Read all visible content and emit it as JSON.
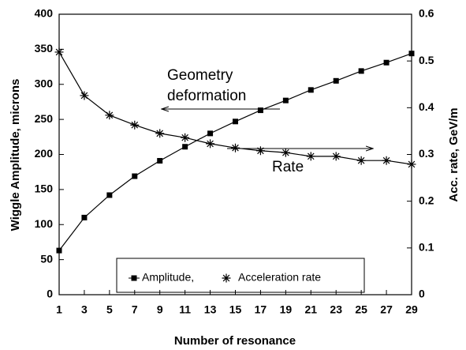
{
  "chart_data": {
    "type": "line",
    "x_label": "Number of resonance",
    "y_label": "Wiggle Amplitude, microns",
    "y2_label": "Acc. rate, GeV/m",
    "x": [
      1,
      3,
      5,
      7,
      9,
      11,
      13,
      15,
      17,
      19,
      21,
      23,
      25,
      27,
      29
    ],
    "series": [
      {
        "name": "Amplitude,",
        "color": "#000000",
        "marker": "square",
        "values": [
          63,
          110,
          142,
          169,
          191,
          211,
          230,
          247,
          263,
          277,
          292,
          305,
          319,
          331,
          344
        ]
      },
      {
        "name": "Acceleration rate",
        "color": "#000000",
        "marker": "star",
        "axis": "y2",
        "values": [
          0.519,
          0.426,
          0.384,
          0.363,
          0.345,
          0.336,
          0.323,
          0.314,
          0.308,
          0.304,
          0.296,
          0.296,
          0.287,
          0.287,
          0.279
        ]
      }
    ],
    "xlim": [
      1,
      29
    ],
    "xticks": [
      1,
      3,
      5,
      7,
      9,
      11,
      13,
      15,
      17,
      19,
      21,
      23,
      25,
      27,
      29
    ],
    "ylim": [
      0,
      400
    ],
    "yticks": [
      0,
      50,
      100,
      150,
      200,
      250,
      300,
      350,
      400
    ],
    "y2lim": [
      0,
      0.6
    ],
    "y2ticks": [
      0,
      0.1,
      0.2,
      0.3,
      0.4,
      0.5,
      0.6
    ],
    "annotations": [
      {
        "lines": [
          "Geometry",
          "deformation"
        ]
      },
      {
        "lines": [
          "Rate"
        ]
      }
    ],
    "legend": "lower center"
  }
}
